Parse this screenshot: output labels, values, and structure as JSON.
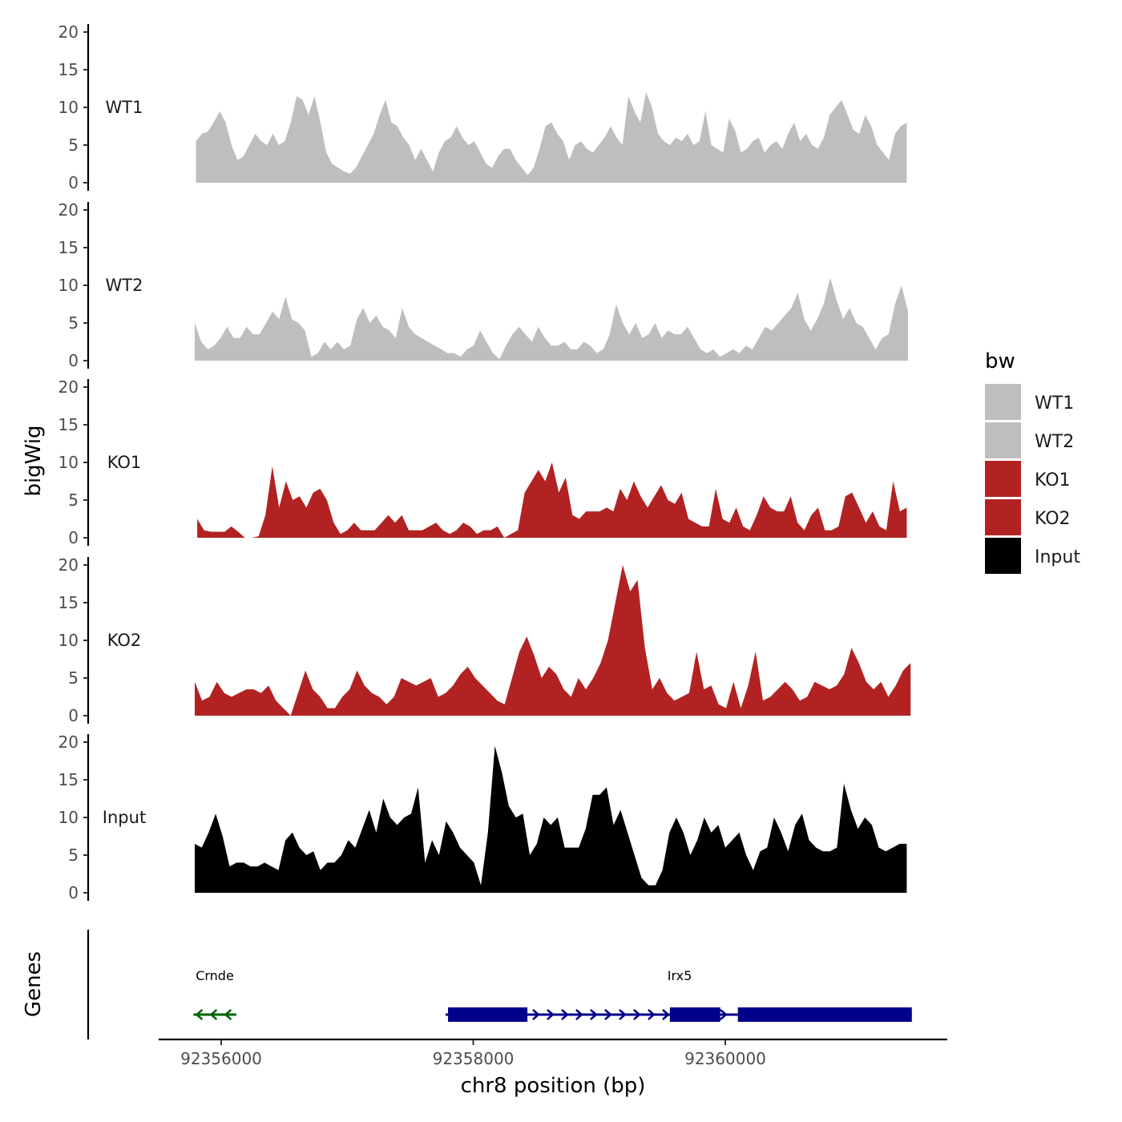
{
  "chart_data": {
    "type": "area",
    "panel_group_title": "bigWig",
    "gene_track_title": "Genes",
    "xlabel": "chr8 position (bp)",
    "x_ticks": [
      92356000,
      92358000,
      92360000
    ],
    "x_tick_labels": [
      "92356000",
      "92358000",
      "92360000"
    ],
    "x_range": [
      92355500,
      92361700
    ],
    "ylim": [
      0,
      20
    ],
    "y_ticks": [
      0,
      5,
      10,
      15,
      20
    ],
    "y_tick_labels": [
      "0",
      "5",
      "10",
      "15",
      "20"
    ],
    "legend": {
      "title": "bw",
      "entries": [
        {
          "label": "WT1",
          "color": "#bebebe"
        },
        {
          "label": "WT2",
          "color": "#bebebe"
        },
        {
          "label": "KO1",
          "color": "#b22222"
        },
        {
          "label": "KO2",
          "color": "#b22222"
        },
        {
          "label": "Input",
          "color": "#000000"
        }
      ]
    },
    "series": [
      {
        "name": "WT1",
        "color": "#bebebe",
        "x_start": 92355800,
        "x_end": 92361440,
        "values": [
          5.5,
          6.5,
          6.8,
          8,
          9.5,
          8,
          5,
          3,
          3.5,
          5,
          6.5,
          5.5,
          5,
          6.5,
          5,
          5.5,
          8,
          11.5,
          11,
          9,
          11.5,
          8,
          4,
          2.5,
          2,
          1.5,
          1.2,
          2,
          3.5,
          5,
          6.5,
          9,
          11,
          8,
          7.5,
          6,
          5,
          3,
          4.5,
          3,
          1.5,
          4,
          5.5,
          6,
          7.5,
          6,
          5,
          5.5,
          4,
          2.5,
          2,
          3.5,
          4.5,
          4.5,
          3,
          2,
          1,
          2,
          4.5,
          7.5,
          8,
          6.5,
          5.5,
          3,
          5,
          5.5,
          4.5,
          4,
          5,
          6,
          7.5,
          6,
          5,
          11.5,
          9.5,
          8,
          12,
          10,
          6.5,
          5.5,
          5,
          6,
          5.5,
          6.5,
          5,
          5.5,
          9.5,
          5,
          4.5,
          4,
          8.5,
          7,
          4,
          4.5,
          5.5,
          6,
          4,
          5,
          5.5,
          4.5,
          6.5,
          8,
          5.5,
          6.5,
          5,
          4.5,
          6,
          9,
          10,
          11,
          9,
          7,
          6.5,
          9,
          7.5,
          5,
          4,
          3,
          6.5,
          7.5,
          8
        ]
      },
      {
        "name": "WT2",
        "color": "#bebebe",
        "x_start": 92355790,
        "x_end": 92361450,
        "values": [
          5,
          2.5,
          1.5,
          2,
          3,
          4.5,
          3,
          3,
          4.5,
          3.5,
          3.5,
          5,
          6.5,
          5.5,
          8.5,
          5.5,
          5,
          4,
          0.5,
          1,
          2.5,
          1.5,
          2.5,
          1.5,
          2,
          5.5,
          7,
          5,
          6,
          4.5,
          4,
          3,
          7,
          4.5,
          3.5,
          3,
          2.5,
          2,
          1.5,
          1,
          1,
          0.5,
          1.5,
          2,
          4,
          2.5,
          1,
          0.2,
          2,
          3.5,
          4.5,
          3.5,
          2.5,
          4.5,
          3,
          2,
          2,
          2.5,
          1.5,
          1.5,
          2.5,
          2,
          1,
          1.5,
          3.5,
          7.5,
          5,
          3.5,
          5,
          3,
          3.5,
          5,
          3,
          4,
          3.5,
          3.5,
          4.5,
          3,
          1.5,
          1,
          1.5,
          0.5,
          1,
          1.5,
          1,
          2,
          1.5,
          3,
          4.5,
          4,
          5,
          6,
          7,
          9,
          5.5,
          4,
          5.5,
          7.5,
          11,
          8,
          5.5,
          7,
          5,
          4.5,
          3,
          1.5,
          3,
          3.5,
          7.5,
          10,
          6.5
        ]
      },
      {
        "name": "KO1",
        "color": "#b22222",
        "x_start": 92355810,
        "x_end": 92361440,
        "values": [
          2.5,
          1,
          0.8,
          0.8,
          0.8,
          1.5,
          0.8,
          0,
          0,
          0.2,
          3,
          9.5,
          4,
          7.5,
          5,
          5.5,
          4,
          6,
          6.5,
          5,
          2,
          0.5,
          1,
          2,
          1,
          1,
          1,
          2,
          3,
          2,
          3,
          1,
          1,
          1,
          1.5,
          2,
          1,
          0.5,
          1,
          2,
          1.5,
          0.5,
          1,
          1,
          1.5,
          0,
          0.5,
          1,
          6,
          7.5,
          9,
          7.5,
          10,
          6,
          8,
          3,
          2.5,
          3.5,
          3.5,
          3.5,
          4,
          3.5,
          6.5,
          5,
          7.5,
          5.5,
          4,
          5.5,
          7,
          5,
          4.5,
          6,
          2.5,
          2,
          1.5,
          1.5,
          6.5,
          2.5,
          2,
          4,
          1.5,
          1,
          3,
          5.5,
          4,
          3.5,
          3.5,
          5.5,
          2,
          1,
          3,
          4,
          1,
          1,
          1.5,
          5.5,
          6,
          4,
          2,
          3.5,
          1.5,
          1,
          7.5,
          3.5,
          4
        ]
      },
      {
        "name": "KO2",
        "color": "#b22222",
        "x_start": 92355790,
        "x_end": 92361470,
        "values": [
          4.5,
          2,
          2.5,
          4.5,
          3,
          2.5,
          3,
          3.5,
          3.5,
          3,
          4,
          2,
          1,
          0,
          3,
          6,
          3.5,
          2.5,
          1,
          1,
          2.5,
          3.5,
          6,
          4,
          3,
          2.5,
          1.5,
          2.5,
          5,
          4.5,
          4,
          4.5,
          5,
          2.5,
          3,
          4,
          5.5,
          6.5,
          5,
          4,
          3,
          2,
          1.5,
          5,
          8.5,
          10.5,
          8,
          5,
          6.5,
          5.5,
          3.5,
          2.5,
          5,
          3.5,
          5,
          7,
          10,
          15,
          20,
          16.5,
          18,
          9,
          3.5,
          5,
          3,
          2,
          2.5,
          3,
          8.5,
          3.5,
          4,
          1.5,
          1,
          4.5,
          1,
          4,
          8.5,
          2,
          2.5,
          3.5,
          4.5,
          3.5,
          2,
          2.5,
          4.5,
          4,
          3.5,
          4,
          5.5,
          9,
          7,
          4.5,
          3.5,
          4.5,
          2.5,
          4,
          6,
          7
        ]
      },
      {
        "name": "Input",
        "color": "#000000",
        "x_start": 92355790,
        "x_end": 92361440,
        "values": [
          6.5,
          6,
          8,
          10.5,
          7.5,
          3.5,
          4,
          4,
          3.5,
          3.5,
          4,
          3.5,
          3,
          7,
          8,
          6,
          5,
          5.5,
          3,
          4,
          4,
          5,
          7,
          6,
          8.5,
          11,
          8,
          12.5,
          10,
          9,
          10,
          10.5,
          14,
          4,
          7,
          5,
          9.5,
          8,
          6,
          5,
          4,
          1,
          8,
          19.5,
          16,
          11.5,
          10,
          10.5,
          5,
          6.5,
          10,
          9,
          10,
          6,
          6,
          6,
          8.5,
          13,
          13,
          14,
          9,
          11,
          8,
          5,
          2,
          1,
          1,
          3,
          8,
          10,
          8,
          5,
          7,
          10,
          8,
          9,
          6,
          7,
          8,
          5,
          3,
          5.5,
          6,
          10,
          8,
          5.5,
          9,
          10.5,
          7,
          6,
          5.5,
          5.5,
          6,
          14.5,
          11,
          8.5,
          10,
          9,
          6,
          5.5,
          6,
          6.5,
          6.5
        ]
      }
    ],
    "genes": [
      {
        "name": "Crnde",
        "strand": "-",
        "color": "#006400",
        "start": 92355780,
        "end": 92356120,
        "exons": []
      },
      {
        "name": "Irx5",
        "strand": "+",
        "color": "#00008b",
        "start": 92357780,
        "end": 92361480,
        "exons": [
          [
            92357800,
            92358430
          ],
          [
            92359560,
            92359960
          ],
          [
            92360100,
            92361480
          ]
        ]
      }
    ]
  }
}
